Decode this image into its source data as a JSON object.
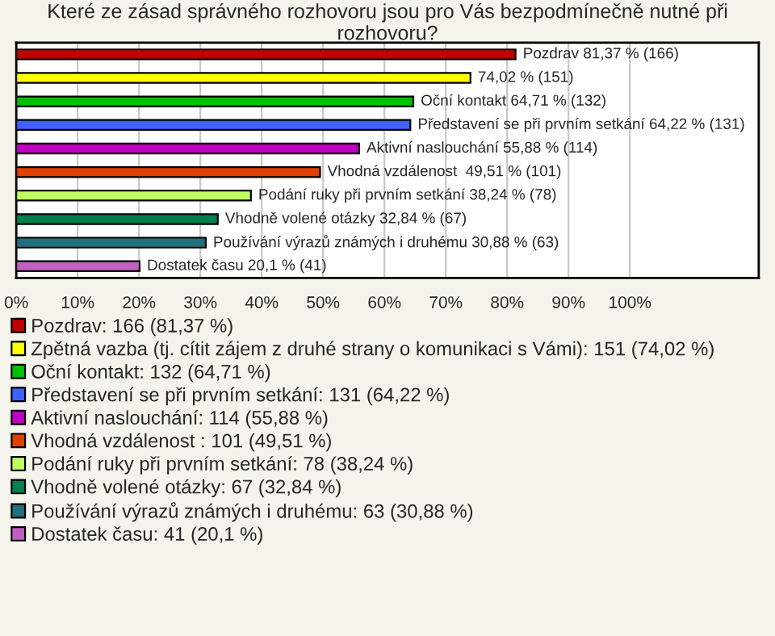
{
  "chart_data": {
    "type": "bar",
    "orientation": "horizontal",
    "title": "Které ze zásad správného rozhovoru jsou pro Vás bezpodmínečně nutné při rozhovoru?",
    "categories": [
      null,
      null,
      null,
      null,
      null,
      null,
      null,
      null,
      null,
      null
    ],
    "series": [
      {
        "name": "Pozdrav: 166 (81,37 %)",
        "color": "#c00000",
        "values": [
          81.37,
          null,
          null,
          null,
          null,
          null,
          null,
          null,
          null,
          null
        ],
        "value_labels": [
          "Pozdrav 81,37 % (166)",
          null,
          null,
          null,
          null,
          null,
          null,
          null,
          null,
          null
        ]
      },
      {
        "name": "Zpětná vazba (tj. cítit zájem z druhé strany o komunikaci s Vámi): 151 (74,02 %)",
        "color": "#ffff00",
        "values": [
          null,
          74.02,
          null,
          null,
          null,
          null,
          null,
          null,
          null,
          null
        ],
        "value_labels": [
          null,
          "74,02 % (151)",
          null,
          null,
          null,
          null,
          null,
          null,
          null,
          null
        ]
      },
      {
        "name": "Oční kontakt: 132 (64,71 %)",
        "color": "#00c000",
        "values": [
          null,
          null,
          64.71,
          null,
          null,
          null,
          null,
          null,
          null,
          null
        ],
        "value_labels": [
          null,
          null,
          "Oční kontakt 64,71 % (132)",
          null,
          null,
          null,
          null,
          null,
          null,
          null
        ]
      },
      {
        "name": "Představení se při prvním setkání: 131 (64,22 %)",
        "color": "#4060ff",
        "values": [
          null,
          null,
          null,
          64.22,
          null,
          null,
          null,
          null,
          null,
          null
        ],
        "value_labels": [
          null,
          null,
          null,
          "Představení se při prvním setkání 64,22 % (131)",
          null,
          null,
          null,
          null,
          null,
          null
        ]
      },
      {
        "name": "Aktivní naslouchání: 114 (55,88 %)",
        "color": "#c000c0",
        "values": [
          null,
          null,
          null,
          null,
          55.88,
          null,
          null,
          null,
          null,
          null
        ],
        "value_labels": [
          null,
          null,
          null,
          null,
          "Aktivní naslouchání 55,88 % (114)",
          null,
          null,
          null,
          null,
          null
        ]
      },
      {
        "name": "Vhodná vzdálenost : 101 (49,51 %)",
        "color": "#e04000",
        "values": [
          null,
          null,
          null,
          null,
          null,
          49.51,
          null,
          null,
          null,
          null
        ],
        "value_labels": [
          null,
          null,
          null,
          null,
          null,
          "Vhodná vzdálenost  49,51 % (101)",
          null,
          null,
          null,
          null
        ]
      },
      {
        "name": "Podání ruky při prvním setkání: 78 (38,24 %)",
        "color": "#c0ff60",
        "values": [
          null,
          null,
          null,
          null,
          null,
          null,
          38.24,
          null,
          null,
          null
        ],
        "value_labels": [
          null,
          null,
          null,
          null,
          null,
          null,
          "Podání ruky při prvním setkání 38,24 % (78)",
          null,
          null,
          null
        ]
      },
      {
        "name": "Vhodně volené otázky: 67 (32,84 %)",
        "color": "#008050",
        "values": [
          null,
          null,
          null,
          null,
          null,
          null,
          null,
          32.84,
          null,
          null
        ],
        "value_labels": [
          null,
          null,
          null,
          null,
          null,
          null,
          null,
          "Vhodně volené otázky 32,84 % (67)",
          null,
          null
        ]
      },
      {
        "name": "Používání výrazů známých i druhému: 63 (30,88 %)",
        "color": "#207080",
        "values": [
          null,
          null,
          null,
          null,
          null,
          null,
          null,
          null,
          30.88,
          null
        ],
        "value_labels": [
          null,
          null,
          null,
          null,
          null,
          null,
          null,
          null,
          "Používání výrazů známých i druhému 30,88 % (63)",
          null
        ]
      },
      {
        "name": "Dostatek času: 41 (20,1 %)",
        "color": "#c060c0",
        "values": [
          null,
          null,
          null,
          null,
          null,
          null,
          null,
          null,
          null,
          20.1
        ],
        "value_labels": [
          null,
          null,
          null,
          null,
          null,
          null,
          null,
          null,
          null,
          "Dostatek času 20,1 % (41)"
        ]
      }
    ],
    "xlim": [
      0,
      121
    ],
    "xticks": [
      {
        "value": 0,
        "label": "0%"
      },
      {
        "value": 10,
        "label": "10%"
      },
      {
        "value": 20,
        "label": "20%"
      },
      {
        "value": 30,
        "label": "30%"
      },
      {
        "value": 40,
        "label": "40%"
      },
      {
        "value": 50,
        "label": "50%"
      },
      {
        "value": 60,
        "label": "60%"
      },
      {
        "value": 70,
        "label": "70%"
      },
      {
        "value": 80,
        "label": "80%"
      },
      {
        "value": 90,
        "label": "90%"
      },
      {
        "value": 100,
        "label": "100%"
      }
    ],
    "tick_labels": "x",
    "grid": "x",
    "legend": "bottom"
  }
}
